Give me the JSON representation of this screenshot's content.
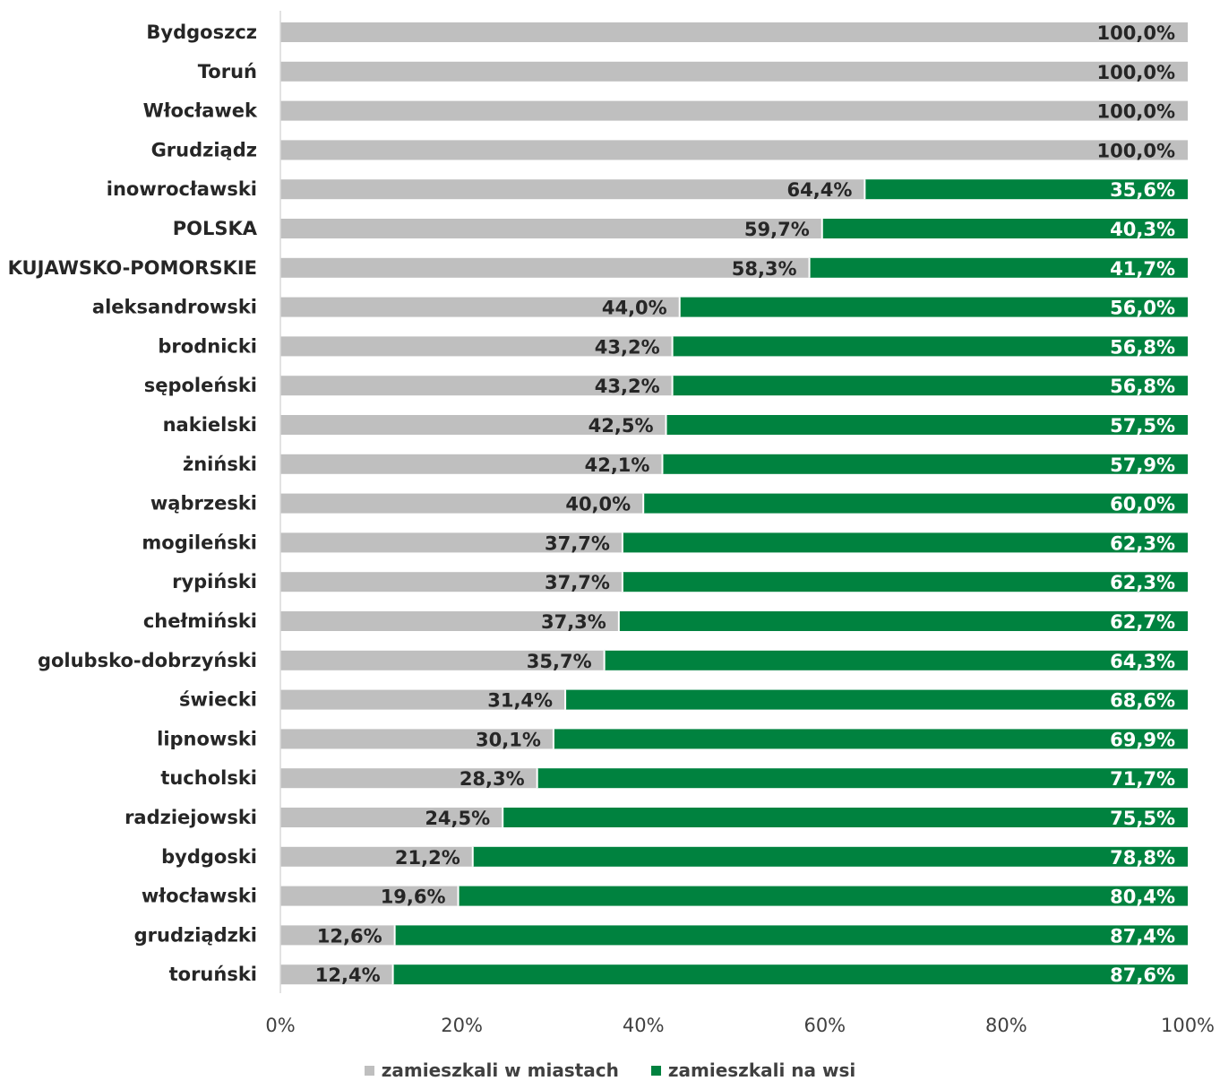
{
  "chart_data": {
    "type": "bar",
    "orientation": "horizontal",
    "stacked": "percent",
    "categories": [
      "Bydgoszcz",
      "Toruń",
      "Włocławek",
      "Grudziądz",
      "inowrocławski",
      "POLSKA",
      "KUJAWSKO-POMORSKIE",
      "aleksandrowski",
      "brodnicki",
      "sępoleński",
      "nakielski",
      "żniński",
      "wąbrzeski",
      "mogileński",
      "rypiński",
      "chełmiński",
      "golubsko-dobrzyński",
      "świecki",
      "lipnowski",
      "tucholski",
      "radziejowski",
      "bydgoski",
      "włocławski",
      "grudziądzki",
      "toruński"
    ],
    "series": [
      {
        "name": "zamieszkali w miastach",
        "color": "#bfbfbf",
        "values": [
          100.0,
          100.0,
          100.0,
          100.0,
          64.4,
          59.7,
          58.3,
          44.0,
          43.2,
          43.2,
          42.5,
          42.1,
          40.0,
          37.7,
          37.7,
          37.3,
          35.7,
          31.4,
          30.1,
          28.3,
          24.5,
          21.2,
          19.6,
          12.6,
          12.4
        ],
        "labels": [
          "100,0%",
          "100,0%",
          "100,0%",
          "100,0%",
          "64,4%",
          "59,7%",
          "58,3%",
          "44,0%",
          "43,2%",
          "43,2%",
          "42,5%",
          "42,1%",
          "40,0%",
          "37,7%",
          "37,7%",
          "37,3%",
          "35,7%",
          "31,4%",
          "30,1%",
          "28,3%",
          "24,5%",
          "21,2%",
          "19,6%",
          "12,6%",
          "12,4%"
        ]
      },
      {
        "name": "zamieszkali na wsi",
        "color": "#00823f",
        "values": [
          0,
          0,
          0,
          0,
          35.6,
          40.3,
          41.7,
          56.0,
          56.8,
          56.8,
          57.5,
          57.9,
          60.0,
          62.3,
          62.3,
          62.7,
          64.3,
          68.6,
          69.9,
          71.7,
          75.5,
          78.8,
          80.4,
          87.4,
          87.6
        ],
        "labels": [
          "",
          "",
          "",
          "",
          "35,6%",
          "40,3%",
          "41,7%",
          "56,0%",
          "56,8%",
          "56,8%",
          "57,5%",
          "57,9%",
          "60,0%",
          "62,3%",
          "62,3%",
          "62,7%",
          "64,3%",
          "68,6%",
          "69,9%",
          "71,7%",
          "75,5%",
          "78,8%",
          "80,4%",
          "87,4%",
          "87,6%"
        ]
      }
    ],
    "xlim": [
      0,
      100
    ],
    "xticks": [
      "0%",
      "20%",
      "40%",
      "60%",
      "80%",
      "100%"
    ],
    "grid": false,
    "legend_position": "bottom"
  }
}
